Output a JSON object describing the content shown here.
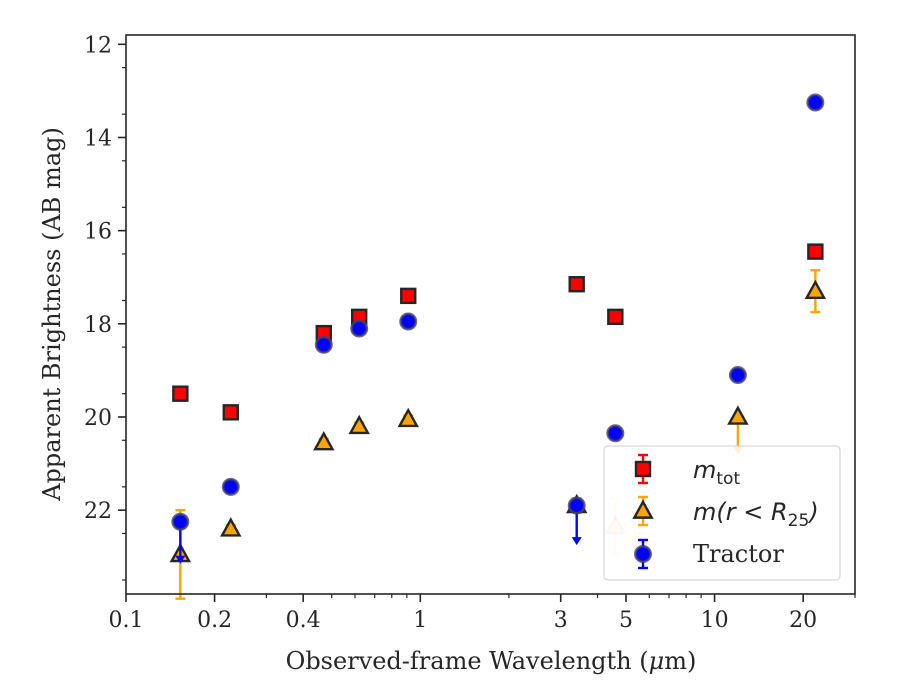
{
  "colors": {
    "m_tot": "#ff0000",
    "m_r25": "#ffa500",
    "tractor": "#0000ff",
    "edge": "#262626"
  },
  "chart_data": {
    "type": "scatter",
    "xscale": "log",
    "yaxis_inverted": true,
    "xlim": [
      0.1,
      30
    ],
    "ylim": [
      23.8,
      11.8
    ],
    "xlabel_parts": {
      "text": "Observed-frame Wavelength (",
      "mu": "μ",
      "unit": "m)"
    },
    "ylabel": "Apparent Brightness (AB mag)",
    "xticks": [
      {
        "value": 0.1,
        "label": "0.1"
      },
      {
        "value": 0.2,
        "label": "0.2"
      },
      {
        "value": 0.4,
        "label": "0.4"
      },
      {
        "value": 1,
        "label": "1"
      },
      {
        "value": 3,
        "label": "3"
      },
      {
        "value": 5,
        "label": "5"
      },
      {
        "value": 10,
        "label": "10"
      },
      {
        "value": 20,
        "label": "20"
      }
    ],
    "yticks": [
      {
        "value": 12,
        "label": "12"
      },
      {
        "value": 14,
        "label": "14"
      },
      {
        "value": 16,
        "label": "16"
      },
      {
        "value": 18,
        "label": "18"
      },
      {
        "value": 20,
        "label": "20"
      },
      {
        "value": 22,
        "label": "22"
      }
    ],
    "legend_position": "lower right",
    "series": [
      {
        "key": "m_tot",
        "legend": {
          "base": "m",
          "sub": "tot"
        },
        "marker": "square",
        "color": "#ff0000",
        "points": [
          {
            "x": 0.153,
            "y": 19.5,
            "err": 0.08
          },
          {
            "x": 0.227,
            "y": 19.9,
            "err": 0.08
          },
          {
            "x": 0.47,
            "y": 18.2,
            "err": 0.08
          },
          {
            "x": 0.62,
            "y": 17.85,
            "err": 0.1
          },
          {
            "x": 0.91,
            "y": 17.4,
            "err": 0.08
          },
          {
            "x": 3.4,
            "y": 17.15,
            "err": 0.08
          },
          {
            "x": 4.6,
            "y": 17.85,
            "err": 0.08
          },
          {
            "x": 22.0,
            "y": 16.45,
            "err": 0.08
          }
        ]
      },
      {
        "key": "m_r25",
        "legend": {
          "base": "m",
          "paren": "(r < R",
          "sub": "25",
          "close": ")"
        },
        "marker": "triangle",
        "color": "#ffa500",
        "points": [
          {
            "x": 0.153,
            "y": 22.95,
            "err_low": 0.95,
            "err_high": 0.95
          },
          {
            "x": 0.227,
            "y": 22.4,
            "err_low": 0.08,
            "err_high": 0.08
          },
          {
            "x": 0.47,
            "y": 20.55,
            "err_low": 0.08,
            "err_high": 0.08
          },
          {
            "x": 0.62,
            "y": 20.2,
            "err_low": 0.08,
            "err_high": 0.08
          },
          {
            "x": 0.91,
            "y": 20.05,
            "err_low": 0.08,
            "err_high": 0.08
          },
          {
            "x": 3.4,
            "y": 21.9,
            "err_low": 0.15,
            "err_high": 0.15
          },
          {
            "x": 4.6,
            "y": 22.35,
            "err_low": 0.6,
            "err_high": 0.6,
            "faded": true
          },
          {
            "x": 12.0,
            "y": 20.0,
            "err_low": 0.0,
            "err_high": 0.8,
            "upper_limit": true
          },
          {
            "x": 22.0,
            "y": 17.3,
            "err_low": 0.45,
            "err_high": 0.45
          }
        ]
      },
      {
        "key": "tractor",
        "legend": {
          "text": "Tractor"
        },
        "marker": "circle",
        "color": "#0000ff",
        "points": [
          {
            "x": 0.153,
            "y": 22.25,
            "err_low": 0.05,
            "err_high": 0.9,
            "upper_limit": true
          },
          {
            "x": 0.227,
            "y": 21.5,
            "err": 0.05
          },
          {
            "x": 0.47,
            "y": 18.45,
            "err": 0.05
          },
          {
            "x": 0.62,
            "y": 18.1,
            "err": 0.05
          },
          {
            "x": 0.91,
            "y": 17.95,
            "err": 0.05
          },
          {
            "x": 3.4,
            "y": 21.9,
            "err_low": 0.05,
            "err_high": 0.85,
            "upper_limit": true
          },
          {
            "x": 4.6,
            "y": 20.35,
            "err": 0.05
          },
          {
            "x": 12.0,
            "y": 19.1,
            "err": 0.05
          },
          {
            "x": 22.0,
            "y": 13.25,
            "err": 0.05
          }
        ]
      }
    ]
  }
}
